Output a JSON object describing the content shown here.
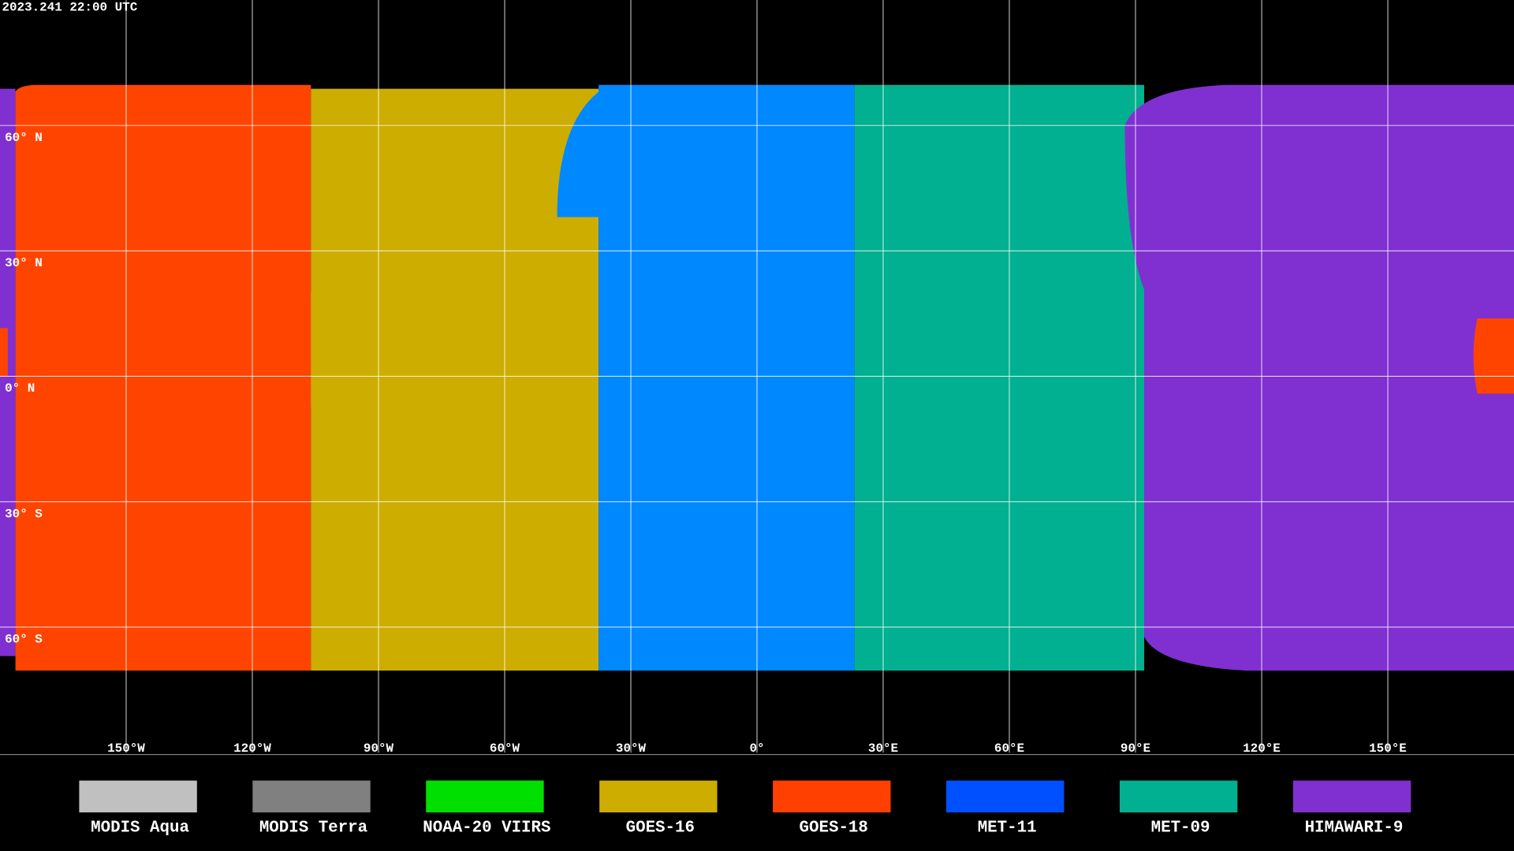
{
  "header": {
    "timestamp": "2023.241 22:00 UTC"
  },
  "map": {
    "lat_labels": [
      "60° N",
      "30° N",
      "0° N",
      "30° S",
      "60° S"
    ],
    "lon_labels": [
      "150°W",
      "120°W",
      "90°W",
      "60°W",
      "30°W",
      "0°",
      "30°E",
      "60°E",
      "90°E",
      "120°E",
      "150°E"
    ]
  },
  "legend": [
    {
      "label": "MODIS Aqua",
      "color": "#c0c0c0"
    },
    {
      "label": "MODIS Terra",
      "color": "#808080"
    },
    {
      "label": "NOAA-20 VIIRS",
      "color": "#00e000"
    },
    {
      "label": "GOES-16",
      "color": "#ccad00"
    },
    {
      "label": "GOES-18",
      "color": "#ff4000"
    },
    {
      "label": "MET-11",
      "color": "#0050ff"
    },
    {
      "label": "MET-09",
      "color": "#00b090"
    },
    {
      "label": "HIMAWARI-9",
      "color": "#8030d0"
    }
  ]
}
